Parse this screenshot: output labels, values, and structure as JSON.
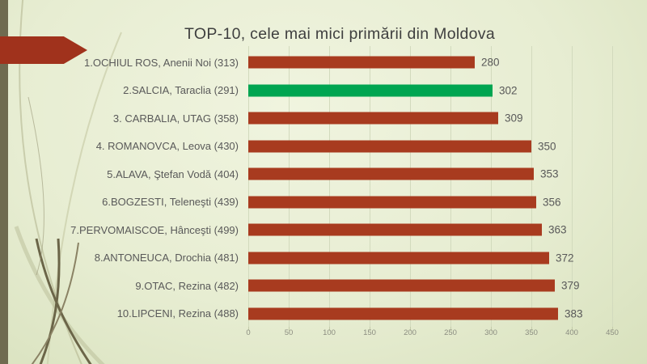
{
  "title": "TOP-10, cele mai mici primării din Moldova",
  "chart_data": {
    "type": "bar",
    "orientation": "horizontal",
    "title": "TOP-10, cele mai mici primării din Moldova",
    "categories": [
      "1.OCHIUL ROS, Anenii Noi (313)",
      "2.SALCIA, Taraclia (291)",
      "3. CARBALIA, UTAG (358)",
      "4. ROMANOVCA, Leova (430)",
      "5.ALAVA, Ştefan Vodă (404)",
      "6.BOGZESTI, Teleneşti (439)",
      "7.PERVOMAISCOE, Hânceşti (499)",
      "8.ANTONEUCA, Drochia (481)",
      "9.OTAC, Rezina (482)",
      "10.LIPCENI, Rezina (488)"
    ],
    "values": [
      280,
      302,
      309,
      350,
      353,
      356,
      363,
      372,
      379,
      383
    ],
    "data_labels": [
      "280",
      "302",
      "309",
      "350",
      "353",
      "356",
      "363",
      "372",
      "379",
      "383"
    ],
    "highlight_index": 1,
    "xlabel": "",
    "ylabel": "",
    "xlim": [
      0,
      450
    ],
    "x_ticks": [
      0,
      50,
      100,
      150,
      200,
      250,
      300,
      350,
      400,
      450
    ],
    "grid": "vertical-on",
    "legend": "none"
  },
  "colors": {
    "bar": "#A83B1F",
    "highlight_bar": "#00A551",
    "arrow_banner": "#A0321C",
    "left_stripe": "#6F6B50",
    "title_text": "#3F3F3F",
    "label_text": "#595959",
    "value_text": "#595959",
    "tick_text": "#8B8D80",
    "gridline": "#d2dabd"
  },
  "decor": {
    "arrow_shape": "right-pointing banner at top-left",
    "curves": "olive decorative wisp curves bottom-left"
  }
}
